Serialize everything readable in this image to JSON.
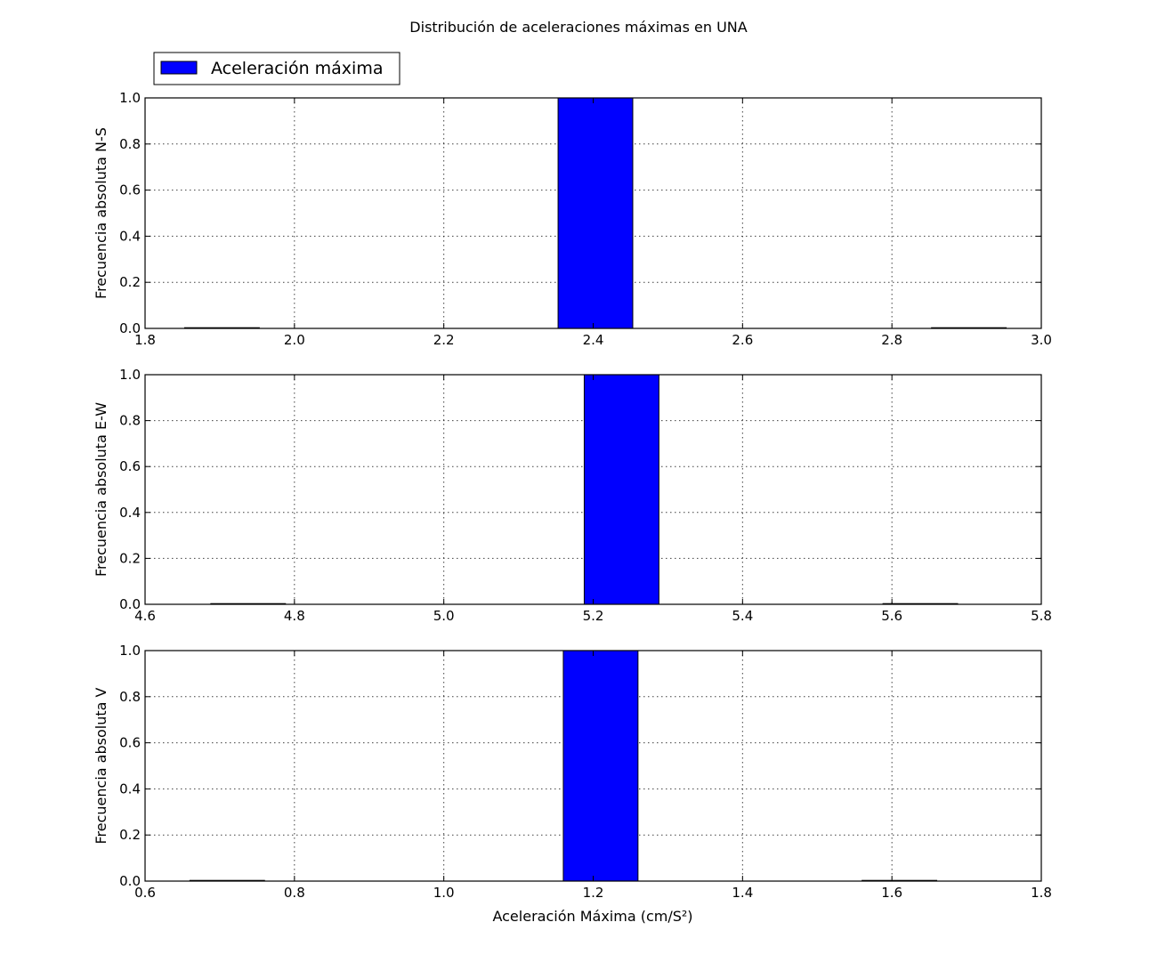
{
  "figure": {
    "title": "Distribución de aceleraciones máximas en UNA",
    "legend_label": "Aceleración máxima",
    "xlabel": "Aceleración Máxima (cm/S²)",
    "bar_color": "#0000ff",
    "legend_position": "top-left"
  },
  "chart_data": [
    {
      "type": "bar",
      "ylabel": "Frecuencia absoluta N-S",
      "xlim": [
        1.8,
        3.0
      ],
      "ylim": [
        0.0,
        1.0
      ],
      "xticks": [
        "1.8",
        "2.0",
        "2.2",
        "2.4",
        "2.6",
        "2.8",
        "3.0"
      ],
      "yticks": [
        "0.0",
        "0.2",
        "0.4",
        "0.6",
        "0.8",
        "1.0"
      ],
      "grid": true,
      "bins": [
        {
          "start": 1.853,
          "end": 1.953,
          "count": 0
        },
        {
          "start": 2.353,
          "end": 2.453,
          "count": 1
        },
        {
          "start": 2.853,
          "end": 2.953,
          "count": 0
        }
      ]
    },
    {
      "type": "bar",
      "ylabel": "Frecuencia absoluta E-W",
      "xlim": [
        4.6,
        5.8
      ],
      "ylim": [
        0.0,
        1.0
      ],
      "xticks": [
        "4.6",
        "4.8",
        "5.0",
        "5.2",
        "5.4",
        "5.6",
        "5.8"
      ],
      "yticks": [
        "0.0",
        "0.2",
        "0.4",
        "0.6",
        "0.8",
        "1.0"
      ],
      "grid": true,
      "bins": [
        {
          "start": 4.688,
          "end": 4.788,
          "count": 0
        },
        {
          "start": 5.188,
          "end": 5.288,
          "count": 1
        },
        {
          "start": 5.588,
          "end": 5.688,
          "count": 0
        }
      ]
    },
    {
      "type": "bar",
      "ylabel": "Frecuencia absoluta V",
      "xlim": [
        0.6,
        1.8
      ],
      "ylim": [
        0.0,
        1.0
      ],
      "xticks": [
        "0.6",
        "0.8",
        "1.0",
        "1.2",
        "1.4",
        "1.6",
        "1.8"
      ],
      "yticks": [
        "0.0",
        "0.2",
        "0.4",
        "0.6",
        "0.8",
        "1.0"
      ],
      "grid": true,
      "bins": [
        {
          "start": 0.66,
          "end": 0.76,
          "count": 0
        },
        {
          "start": 1.16,
          "end": 1.26,
          "count": 1
        },
        {
          "start": 1.56,
          "end": 1.66,
          "count": 0
        }
      ]
    }
  ]
}
